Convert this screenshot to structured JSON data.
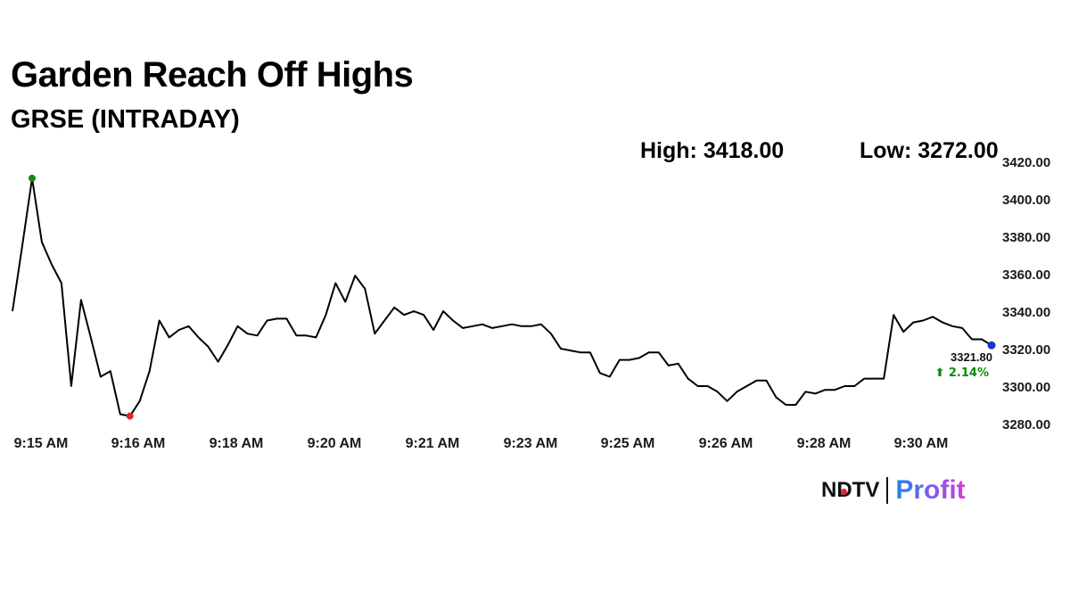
{
  "header": {
    "title": "Garden Reach Off Highs",
    "subtitle": "GRSE (INTRADAY)"
  },
  "stats": {
    "high": "High: 3418.00",
    "low": "Low: 3272.00"
  },
  "last_price": {
    "value": "3321.80",
    "change": "⬆ 2.14%",
    "change_color": "#0a8a0a"
  },
  "logo": {
    "ndtv": "NDTV",
    "profit": "Profit"
  },
  "colors": {
    "line": "#000000",
    "high_marker": "#138a13",
    "low_marker": "#e4262a",
    "last_marker": "#1a35c9",
    "axis_text": "#1a1a1a"
  },
  "chart_data": {
    "type": "line",
    "title": "Garden Reach Off Highs",
    "subtitle": "GRSE (INTRADAY)",
    "x_tick_labels": [
      "9:15 AM",
      "9:16 AM",
      "9:18 AM",
      "9:20 AM",
      "9:21 AM",
      "9:23 AM",
      "9:25 AM",
      "9:26 AM",
      "9:28 AM",
      "9:30 AM"
    ],
    "y_ticks": [
      3280,
      3300,
      3320,
      3340,
      3360,
      3380,
      3400,
      3420
    ],
    "y_tick_labels": [
      "3280.00",
      "3300.00",
      "3320.00",
      "3340.00",
      "3360.00",
      "3380.00",
      "3400.00",
      "3420.00"
    ],
    "ylim": [
      3278,
      3421
    ],
    "y_axis_side": "right",
    "grid": false,
    "series": [
      {
        "values": [
          3340,
          3375,
          3411,
          3377,
          3365,
          3355,
          3300,
          3346,
          3326,
          3305,
          3308,
          3285,
          3284,
          3292,
          3308,
          3335,
          3326,
          3330,
          3332,
          3326,
          3321,
          3313,
          3322,
          3332,
          3328,
          3327,
          3335,
          3336,
          3336,
          3327,
          3327,
          3326,
          3338,
          3355,
          3345,
          3359,
          3352,
          3328,
          3335,
          3342,
          3338,
          3340,
          3338,
          3330,
          3340,
          3335,
          3331,
          3332,
          3333,
          3331,
          3332,
          3333,
          3332,
          3332,
          3333,
          3328,
          3320,
          3319,
          3318,
          3318,
          3307,
          3305,
          3314,
          3314,
          3315,
          3318,
          3318,
          3311,
          3312,
          3304,
          3300,
          3300,
          3297,
          3292,
          3297,
          3300,
          3303,
          3303,
          3294,
          3290,
          3290,
          3297,
          3296,
          3298,
          3298,
          3300,
          3300,
          3304,
          3304,
          3304,
          3338,
          3329,
          3334,
          3335,
          3337,
          3334,
          3332,
          3331,
          3325,
          3325,
          3321.8
        ]
      }
    ],
    "markers": {
      "high": {
        "index": 2,
        "value": 3411
      },
      "low": {
        "index": 12,
        "value": 3284
      },
      "last": {
        "index": 100,
        "value": 3321.8
      }
    }
  }
}
